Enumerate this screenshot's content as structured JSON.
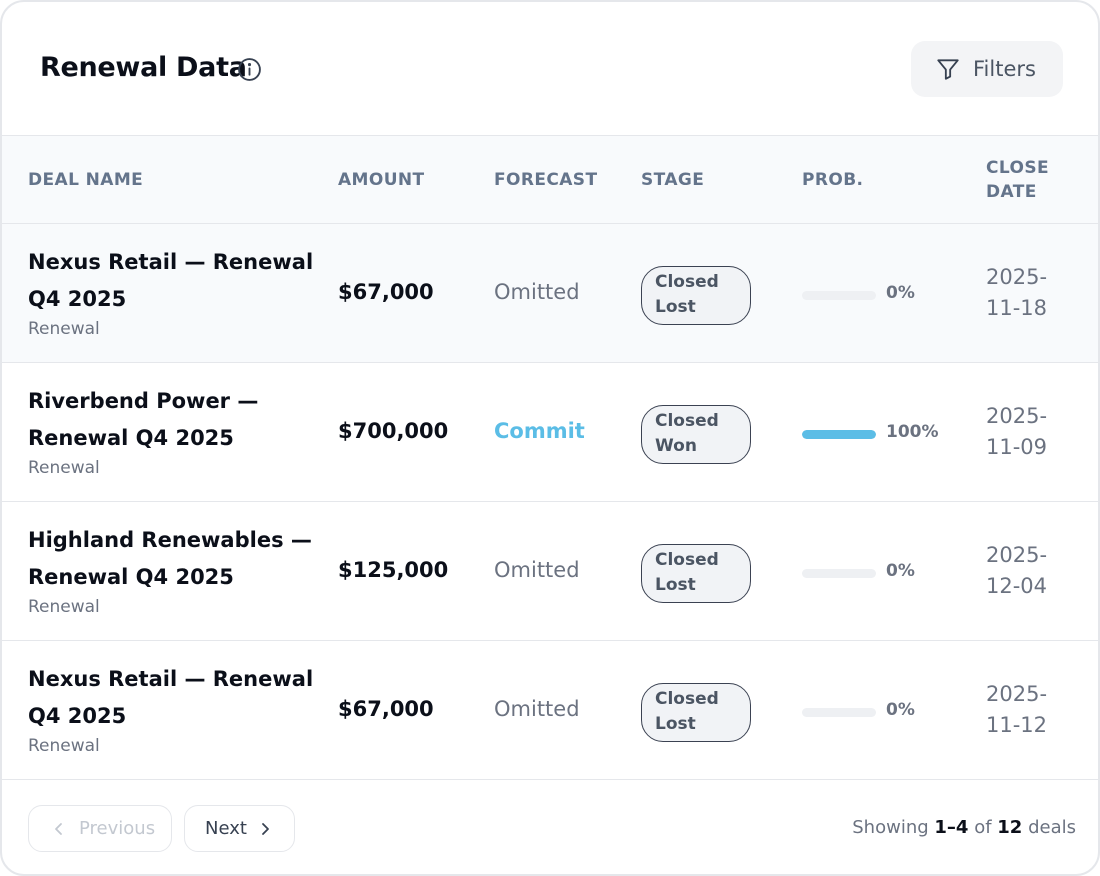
{
  "header": {
    "title": "Renewal Data",
    "filters_label": "Filters"
  },
  "table": {
    "columns": {
      "deal_name": "DEAL NAME",
      "amount": "AMOUNT",
      "forecast": "FORECAST",
      "stage": "STAGE",
      "prob": "PROB.",
      "close_date": "CLOSE DATE"
    },
    "rows": [
      {
        "deal_name": "Nexus Retail — Renewal Q4 2025",
        "type": "Renewal",
        "amount": "$67,000",
        "forecast": "Omitted",
        "stage": "Closed Lost",
        "probability": 0,
        "prob_label": "0%",
        "close_date": "2025-11-18"
      },
      {
        "deal_name": "Riverbend Power — Renewal Q4 2025",
        "type": "Renewal",
        "amount": "$700,000",
        "forecast": "Commit",
        "stage": "Closed Won",
        "probability": 100,
        "prob_label": "100%",
        "close_date": "2025-11-09"
      },
      {
        "deal_name": "Highland Renewables — Renewal Q4 2025",
        "type": "Renewal",
        "amount": "$125,000",
        "forecast": "Omitted",
        "stage": "Closed Lost",
        "probability": 0,
        "prob_label": "0%",
        "close_date": "2025-12-04"
      },
      {
        "deal_name": "Nexus Retail — Renewal Q4 2025",
        "type": "Renewal",
        "amount": "$67,000",
        "forecast": "Omitted",
        "stage": "Closed Lost",
        "probability": 0,
        "prob_label": "0%",
        "close_date": "2025-11-12"
      }
    ]
  },
  "pagination": {
    "previous_label": "Previous",
    "next_label": "Next",
    "showing_prefix": "Showing",
    "range": "1–4",
    "of_label": "of",
    "total": "12",
    "suffix": "deals"
  },
  "colors": {
    "accent": "#5bbde6",
    "badge_border": "#3b4252",
    "header_bg": "#f8fafc"
  },
  "icons": {
    "info": "info-circle-icon",
    "filters": "funnel-icon",
    "previous": "chevron-left-icon",
    "next": "chevron-right-icon"
  }
}
